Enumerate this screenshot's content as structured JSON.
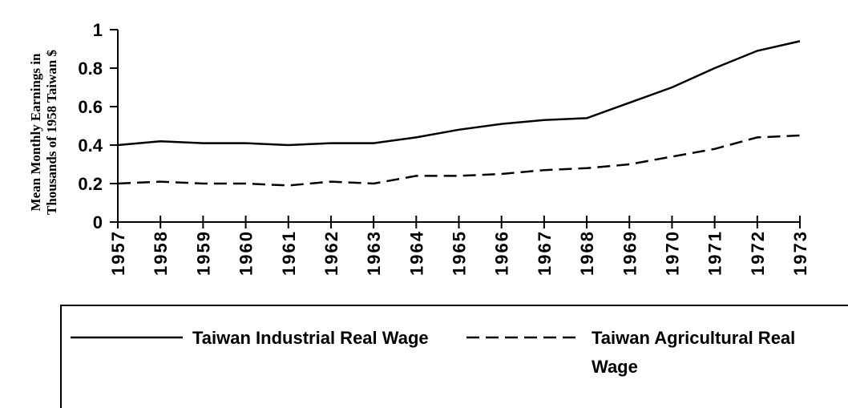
{
  "chart_data": {
    "type": "line",
    "ylabel": [
      "Mean Monthly Earnings in",
      "Thousands of 1958 Taiwan $"
    ],
    "categories": [
      "1957",
      "1958",
      "1959",
      "1960",
      "1961",
      "1962",
      "1963",
      "1964",
      "1965",
      "1966",
      "1967",
      "1968",
      "1969",
      "1970",
      "1971",
      "1972",
      "1973"
    ],
    "series": [
      {
        "name": "Taiwan Industrial Real Wage",
        "color": "#000000",
        "dash": "solid",
        "values": [
          0.4,
          0.42,
          0.41,
          0.41,
          0.4,
          0.41,
          0.41,
          0.44,
          0.48,
          0.51,
          0.53,
          0.54,
          0.62,
          0.7,
          0.8,
          0.89,
          0.94
        ]
      },
      {
        "name": "Taiwan Agricultural Real Wage",
        "color": "#000000",
        "dash": "dashed",
        "values": [
          0.2,
          0.21,
          0.2,
          0.2,
          0.19,
          0.21,
          0.2,
          0.24,
          0.24,
          0.25,
          0.27,
          0.28,
          0.3,
          0.34,
          0.38,
          0.44,
          0.45
        ]
      }
    ],
    "ylim": [
      0,
      1
    ],
    "yticks": [
      0,
      0.2,
      0.4,
      0.6,
      0.8,
      1
    ]
  }
}
